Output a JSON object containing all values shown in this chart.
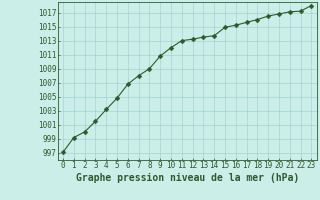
{
  "x": [
    0,
    1,
    2,
    3,
    4,
    5,
    6,
    7,
    8,
    9,
    10,
    11,
    12,
    13,
    14,
    15,
    16,
    17,
    18,
    19,
    20,
    21,
    22,
    23
  ],
  "y": [
    997.1,
    999.2,
    1000.0,
    1001.5,
    1003.2,
    1004.8,
    1006.8,
    1008.0,
    1009.0,
    1010.8,
    1012.0,
    1013.0,
    1013.2,
    1013.5,
    1013.7,
    1014.9,
    1015.2,
    1015.6,
    1016.0,
    1016.5,
    1016.8,
    1017.1,
    1017.2,
    1018.0
  ],
  "line_color": "#2d5a2d",
  "marker": "D",
  "marker_size": 2.5,
  "bg_color": "#cceee8",
  "grid_color": "#99cccc",
  "xlabel": "Graphe pression niveau de la mer (hPa)",
  "xlabel_fontsize": 7,
  "ylabel_ticks": [
    997,
    999,
    1001,
    1003,
    1005,
    1007,
    1009,
    1011,
    1013,
    1015,
    1017
  ],
  "ylim": [
    996.0,
    1018.5
  ],
  "xlim": [
    -0.5,
    23.5
  ],
  "tick_fontsize": 5.5,
  "label_color": "#2d5a2d"
}
